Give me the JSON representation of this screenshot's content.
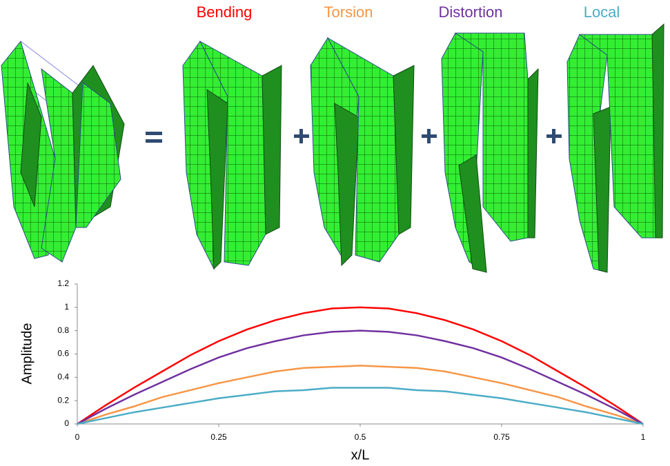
{
  "chart_data": {
    "type": "line",
    "x": [
      0,
      0.05,
      0.1,
      0.15,
      0.2,
      0.25,
      0.3,
      0.35,
      0.4,
      0.45,
      0.5,
      0.55,
      0.6,
      0.65,
      0.7,
      0.75,
      0.8,
      0.85,
      0.9,
      0.95,
      1
    ],
    "series": [
      {
        "name": "Bending",
        "color": "#ff0000",
        "values": [
          0,
          0.16,
          0.31,
          0.45,
          0.59,
          0.71,
          0.81,
          0.89,
          0.95,
          0.99,
          1,
          0.99,
          0.95,
          0.89,
          0.81,
          0.71,
          0.59,
          0.45,
          0.31,
          0.16,
          0
        ]
      },
      {
        "name": "Torsion",
        "color": "#f79646",
        "values": [
          0,
          0.08,
          0.15,
          0.23,
          0.29,
          0.35,
          0.4,
          0.45,
          0.48,
          0.49,
          0.5,
          0.49,
          0.48,
          0.45,
          0.4,
          0.35,
          0.29,
          0.23,
          0.15,
          0.08,
          0
        ]
      },
      {
        "name": "Distortion",
        "color": "#7030a0",
        "values": [
          0,
          0.13,
          0.25,
          0.36,
          0.47,
          0.57,
          0.65,
          0.71,
          0.76,
          0.79,
          0.8,
          0.79,
          0.76,
          0.71,
          0.65,
          0.57,
          0.47,
          0.36,
          0.25,
          0.13,
          0
        ]
      },
      {
        "name": "Local",
        "color": "#4bacc6",
        "values": [
          0,
          0.05,
          0.1,
          0.14,
          0.18,
          0.22,
          0.25,
          0.28,
          0.29,
          0.31,
          0.31,
          0.31,
          0.29,
          0.28,
          0.25,
          0.22,
          0.18,
          0.14,
          0.1,
          0.05,
          0
        ]
      }
    ],
    "xlabel": "x/L",
    "ylabel": "Amplitude",
    "xlim": [
      0,
      1
    ],
    "xticks": [
      0,
      0.25,
      0.5,
      0.75,
      1
    ],
    "ylim": [
      0,
      1.2
    ],
    "yticks": [
      0,
      0.2,
      0.4,
      0.6,
      0.8,
      1,
      1.2
    ]
  }
}
